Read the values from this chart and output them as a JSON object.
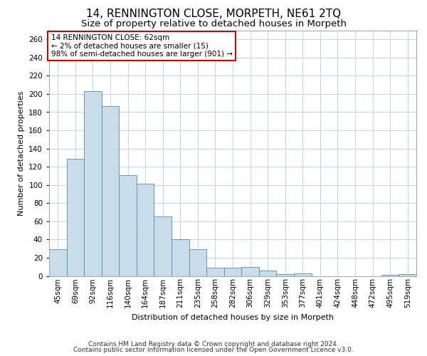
{
  "title": "14, RENNINGTON CLOSE, MORPETH, NE61 2TQ",
  "subtitle": "Size of property relative to detached houses in Morpeth",
  "xlabel": "Distribution of detached houses by size in Morpeth",
  "ylabel": "Number of detached properties",
  "categories": [
    "45sqm",
    "69sqm",
    "92sqm",
    "116sqm",
    "140sqm",
    "164sqm",
    "187sqm",
    "211sqm",
    "235sqm",
    "258sqm",
    "282sqm",
    "306sqm",
    "329sqm",
    "353sqm",
    "377sqm",
    "401sqm",
    "424sqm",
    "448sqm",
    "472sqm",
    "495sqm",
    "519sqm"
  ],
  "values": [
    29,
    129,
    203,
    187,
    111,
    101,
    65,
    40,
    29,
    9,
    9,
    10,
    6,
    2,
    3,
    0,
    0,
    0,
    0,
    1,
    2
  ],
  "bar_color": "#c9dcea",
  "bar_edge_color": "#5a8ab0",
  "annotation_text": "14 RENNINGTON CLOSE: 62sqm\n← 2% of detached houses are smaller (15)\n98% of semi-detached houses are larger (901) →",
  "annotation_box_color": "#ffffff",
  "annotation_box_edge_color": "#cc0000",
  "ylim": [
    0,
    270
  ],
  "yticks": [
    0,
    20,
    40,
    60,
    80,
    100,
    120,
    140,
    160,
    180,
    200,
    220,
    240,
    260
  ],
  "footer_line1": "Contains HM Land Registry data © Crown copyright and database right 2024.",
  "footer_line2": "Contains public sector information licensed under the Open Government Licence v3.0.",
  "bg_color": "#ffffff",
  "grid_color": "#c8d4e0",
  "title_fontsize": 11,
  "subtitle_fontsize": 9.5,
  "axis_label_fontsize": 8,
  "tick_fontsize": 7.5,
  "footer_fontsize": 6.5
}
